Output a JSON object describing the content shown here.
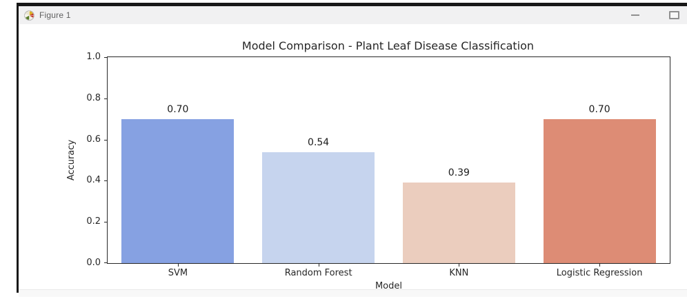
{
  "window": {
    "title": "Figure 1",
    "controls": {
      "minimize_tooltip": "Minimize",
      "maximize_tooltip": "Maximize"
    }
  },
  "chart_data": {
    "type": "bar",
    "title": "Model Comparison - Plant Leaf Disease Classification",
    "xlabel": "Model",
    "ylabel": "Accuracy",
    "categories": [
      "SVM",
      "Random Forest",
      "KNN",
      "Logistic Regression"
    ],
    "values": [
      0.7,
      0.54,
      0.39,
      0.7
    ],
    "value_labels": [
      "0.70",
      "0.54",
      "0.39",
      "0.70"
    ],
    "bar_colors": [
      "#86a1e2",
      "#c6d4ee",
      "#ebcdbe",
      "#dd8c75"
    ],
    "ylim": [
      0.0,
      1.0
    ],
    "yticks": [
      0.0,
      0.2,
      0.4,
      0.6,
      0.8,
      1.0
    ],
    "ytick_labels": [
      "0.0",
      "0.2",
      "0.4",
      "0.6",
      "0.8",
      "1.0"
    ],
    "bar_width_fraction": 0.8,
    "grid": false,
    "legend": null
  }
}
